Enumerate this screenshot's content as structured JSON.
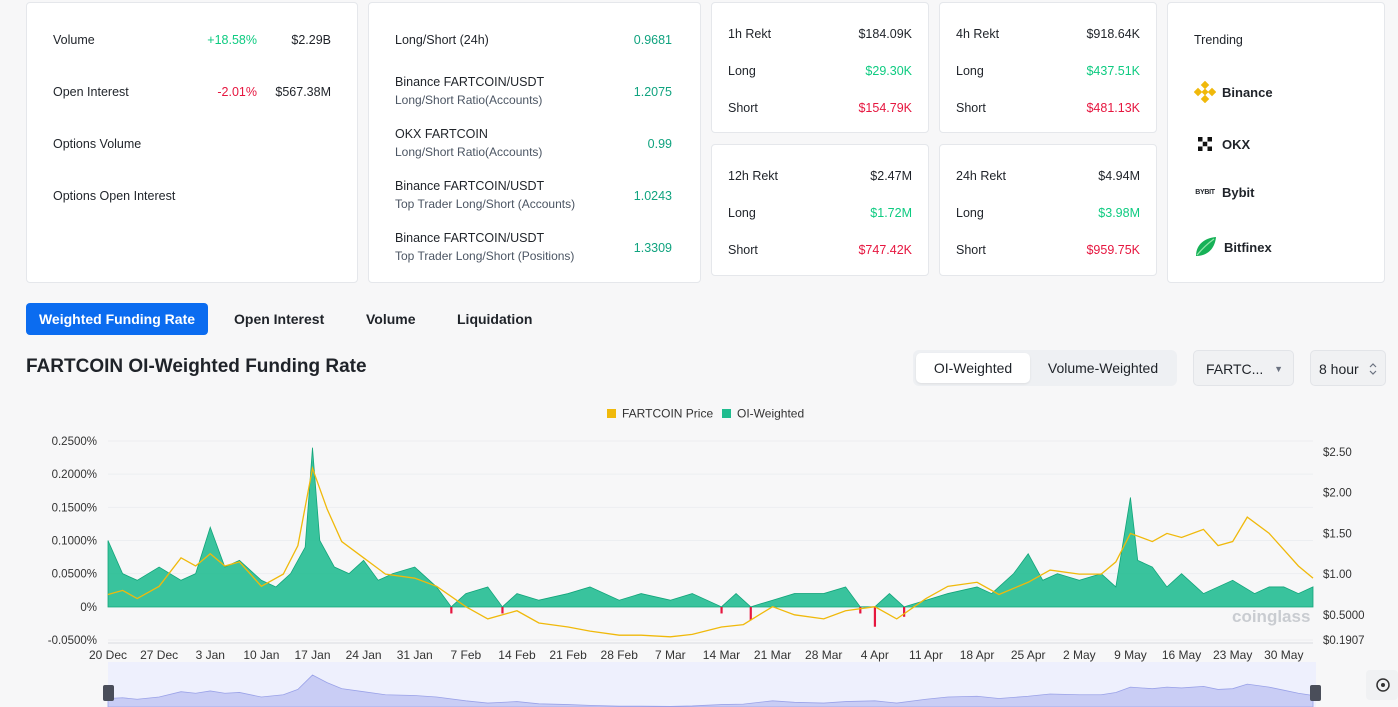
{
  "stats": {
    "volume": {
      "label": "Volume",
      "pct": "+18.58%",
      "value": "$2.29B"
    },
    "open_interest": {
      "label": "Open Interest",
      "pct": "-2.01%",
      "value": "$567.38M"
    },
    "options_volume": {
      "label": "Options Volume"
    },
    "options_oi": {
      "label": "Options Open Interest"
    }
  },
  "long_short": {
    "header": {
      "label": "Long/Short (24h)",
      "value": "0.9681"
    },
    "rows": [
      {
        "title": "Binance FARTCOIN/USDT",
        "sub": "Long/Short Ratio(Accounts)",
        "value": "1.2075"
      },
      {
        "title": "OKX FARTCOIN",
        "sub": "Long/Short Ratio(Accounts)",
        "value": "0.99"
      },
      {
        "title": "Binance FARTCOIN/USDT",
        "sub": "Top Trader Long/Short (Accounts)",
        "value": "1.0243"
      },
      {
        "title": "Binance FARTCOIN/USDT",
        "sub": "Top Trader Long/Short (Positions)",
        "value": "1.3309"
      }
    ]
  },
  "rekt": {
    "h1": {
      "title": "1h Rekt",
      "total": "$184.09K",
      "long_label": "Long",
      "long": "$29.30K",
      "short_label": "Short",
      "short": "$154.79K"
    },
    "h4": {
      "title": "4h Rekt",
      "total": "$918.64K",
      "long_label": "Long",
      "long": "$437.51K",
      "short_label": "Short",
      "short": "$481.13K"
    },
    "h12": {
      "title": "12h Rekt",
      "total": "$2.47M",
      "long_label": "Long",
      "long": "$1.72M",
      "short_label": "Short",
      "short": "$747.42K"
    },
    "h24": {
      "title": "24h Rekt",
      "total": "$4.94M",
      "long_label": "Long",
      "long": "$3.98M",
      "short_label": "Short",
      "short": "$959.75K"
    }
  },
  "trending": {
    "title": "Trending",
    "items": [
      "Binance",
      "OKX",
      "Bybit",
      "Bitfinex"
    ],
    "bybit_logo_text": "BYBIT"
  },
  "tabs": [
    "Weighted Funding Rate",
    "Open Interest",
    "Volume",
    "Liquidation"
  ],
  "chart_title": "FARTCOIN OI-Weighted Funding Rate",
  "segments": [
    "OI-Weighted",
    "Volume-Weighted"
  ],
  "symbol_select": "FARTC...",
  "interval_select": "8 hour",
  "watermark": "coinglass",
  "colors": {
    "accent": "#0b6cf0",
    "price": "#f0b90b",
    "funding": "#1fbc8f",
    "negative": "#e6163f"
  },
  "chart_data": {
    "type": "area",
    "legend": [
      "FARTCOIN Price",
      "OI-Weighted"
    ],
    "legend_position": "top-center",
    "x_ticks": [
      "20 Dec",
      "27 Dec",
      "3 Jan",
      "10 Jan",
      "17 Jan",
      "24 Jan",
      "31 Jan",
      "7 Feb",
      "14 Feb",
      "21 Feb",
      "28 Feb",
      "7 Mar",
      "14 Mar",
      "21 Mar",
      "28 Mar",
      "4 Apr",
      "11 Apr",
      "18 Apr",
      "25 Apr",
      "2 May",
      "9 May",
      "16 May",
      "23 May",
      "30 May"
    ],
    "y_left_ticks": [
      "0.2500%",
      "0.2000%",
      "0.1500%",
      "0.1000%",
      "0.0500%",
      "0%",
      "-0.0500%"
    ],
    "y_left_range": [
      -0.05,
      0.25
    ],
    "y_right_ticks": [
      "$2.50",
      "$2.00",
      "$1.50",
      "$1.00",
      "$0.5000",
      "$0.1907"
    ],
    "y_right_range": [
      0.1907,
      2.5
    ],
    "series": [
      {
        "name": "OI-Weighted",
        "axis": "left",
        "unit": "%",
        "x": [
          "20 Dec",
          "22 Dec",
          "24 Dec",
          "27 Dec",
          "30 Dec",
          "1 Jan",
          "3 Jan",
          "5 Jan",
          "7 Jan",
          "10 Jan",
          "12 Jan",
          "14 Jan",
          "16 Jan",
          "17 Jan",
          "18 Jan",
          "20 Jan",
          "22 Jan",
          "24 Jan",
          "26 Jan",
          "28 Jan",
          "31 Jan",
          "3 Feb",
          "5 Feb",
          "7 Feb",
          "10 Feb",
          "12 Feb",
          "14 Feb",
          "17 Feb",
          "21 Feb",
          "24 Feb",
          "28 Feb",
          "3 Mar",
          "7 Mar",
          "10 Mar",
          "14 Mar",
          "16 Mar",
          "18 Mar",
          "21 Mar",
          "24 Mar",
          "28 Mar",
          "31 Mar",
          "2 Apr",
          "4 Apr",
          "6 Apr",
          "8 Apr",
          "11 Apr",
          "14 Apr",
          "18 Apr",
          "20 Apr",
          "23 Apr",
          "25 Apr",
          "27 Apr",
          "29 Apr",
          "2 May",
          "5 May",
          "7 May",
          "9 May",
          "10 May",
          "12 May",
          "14 May",
          "16 May",
          "19 May",
          "21 May",
          "23 May",
          "26 May",
          "28 May",
          "30 May",
          "1 Jun",
          "3 Jun"
        ],
        "values": [
          0.1,
          0.05,
          0.04,
          0.06,
          0.04,
          0.05,
          0.12,
          0.06,
          0.07,
          0.04,
          0.03,
          0.05,
          0.09,
          0.24,
          0.1,
          0.06,
          0.05,
          0.07,
          0.04,
          0.05,
          0.06,
          0.03,
          -0.01,
          0.02,
          0.03,
          -0.01,
          0.02,
          0.01,
          0.02,
          0.03,
          0.01,
          0.02,
          0.01,
          0.02,
          -0.01,
          0.02,
          -0.02,
          0.01,
          0.02,
          0.02,
          0.03,
          -0.01,
          -0.03,
          0.02,
          -0.015,
          0.01,
          0.02,
          0.03,
          0.02,
          0.05,
          0.08,
          0.04,
          0.05,
          0.04,
          0.05,
          0.03,
          0.165,
          0.07,
          0.06,
          0.03,
          0.05,
          0.02,
          0.03,
          0.04,
          0.02,
          0.03,
          0.03,
          0.02,
          0.03
        ]
      },
      {
        "name": "FARTCOIN Price",
        "axis": "right",
        "unit": "$",
        "x": [
          "20 Dec",
          "22 Dec",
          "24 Dec",
          "27 Dec",
          "30 Dec",
          "1 Jan",
          "3 Jan",
          "5 Jan",
          "7 Jan",
          "10 Jan",
          "13 Jan",
          "15 Jan",
          "17 Jan",
          "19 Jan",
          "21 Jan",
          "24 Jan",
          "27 Jan",
          "31 Jan",
          "3 Feb",
          "7 Feb",
          "10 Feb",
          "14 Feb",
          "17 Feb",
          "21 Feb",
          "24 Feb",
          "28 Feb",
          "3 Mar",
          "7 Mar",
          "10 Mar",
          "14 Mar",
          "17 Mar",
          "21 Mar",
          "24 Mar",
          "28 Mar",
          "31 Mar",
          "4 Apr",
          "7 Apr",
          "11 Apr",
          "14 Apr",
          "18 Apr",
          "21 Apr",
          "25 Apr",
          "28 Apr",
          "2 May",
          "5 May",
          "7 May",
          "9 May",
          "12 May",
          "14 May",
          "16 May",
          "19 May",
          "21 May",
          "23 May",
          "25 May",
          "28 May",
          "30 May",
          "1 Jun",
          "3 Jun"
        ],
        "values": [
          0.75,
          0.8,
          0.7,
          0.85,
          1.2,
          1.1,
          1.25,
          1.1,
          1.15,
          0.85,
          1.0,
          1.35,
          2.3,
          1.8,
          1.4,
          1.2,
          1.0,
          0.95,
          0.85,
          0.6,
          0.45,
          0.55,
          0.4,
          0.35,
          0.3,
          0.25,
          0.25,
          0.23,
          0.26,
          0.35,
          0.38,
          0.6,
          0.5,
          0.45,
          0.55,
          0.6,
          0.45,
          0.7,
          0.85,
          0.9,
          0.75,
          0.9,
          1.05,
          1.0,
          1.0,
          1.15,
          1.5,
          1.4,
          1.5,
          1.45,
          1.55,
          1.35,
          1.4,
          1.7,
          1.5,
          1.3,
          1.1,
          0.95
        ]
      }
    ]
  }
}
